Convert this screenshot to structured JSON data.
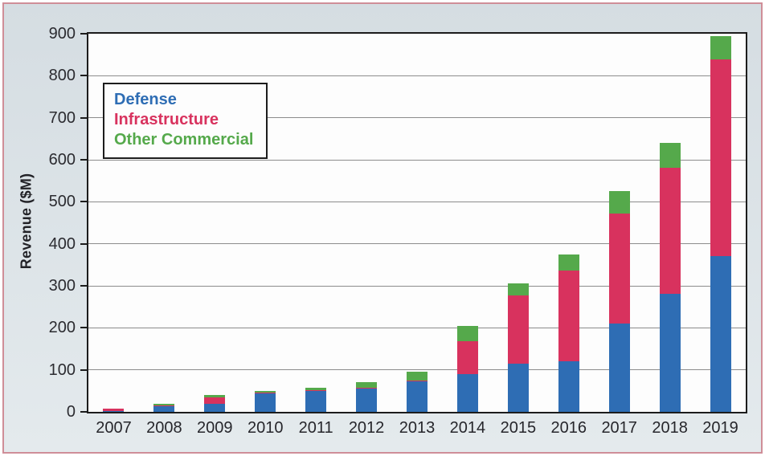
{
  "frame": {
    "background_top": "#d5dde2",
    "background_bottom": "#e4eaed",
    "outer_border_color": "#cf8e98",
    "plot_background": "#fdfdfd",
    "plot_border_color": "#1c1c1c",
    "grid_color": "#8c8c8c",
    "text_color": "#2b2b30"
  },
  "y_axis": {
    "title": "Revenue ($M)",
    "tick_labels": [
      "0",
      "100",
      "200",
      "300",
      "400",
      "500",
      "600",
      "700",
      "800",
      "900"
    ]
  },
  "legend": {
    "items": [
      {
        "label": "Defense",
        "color": "#2e6db4"
      },
      {
        "label": "Infrastructure",
        "color": "#d8325e"
      },
      {
        "label": "Other Commercial",
        "color": "#55a94b"
      }
    ]
  },
  "chart_data": {
    "type": "bar",
    "stacked": true,
    "title": "",
    "xlabel": "",
    "ylabel": "Revenue ($M)",
    "ylim": [
      0,
      900
    ],
    "ytick_step": 100,
    "grid": true,
    "legend_position": "upper-left-inside",
    "categories": [
      "2007",
      "2008",
      "2009",
      "2010",
      "2011",
      "2012",
      "2013",
      "2014",
      "2015",
      "2016",
      "2017",
      "2018",
      "2019"
    ],
    "series": [
      {
        "name": "Defense",
        "color": "#2e6db4",
        "values": [
          2,
          15,
          20,
          44,
          50,
          55,
          73,
          90,
          115,
          120,
          210,
          280,
          370
        ]
      },
      {
        "name": "Infrastructure",
        "color": "#d8325e",
        "values": [
          6,
          1,
          15,
          1,
          2,
          3,
          2,
          78,
          163,
          217,
          262,
          300,
          468
        ]
      },
      {
        "name": "Other Commercial",
        "color": "#55a94b",
        "values": [
          0,
          4,
          5,
          5,
          5,
          12,
          20,
          37,
          27,
          38,
          53,
          60,
          57
        ]
      }
    ],
    "totals": [
      8,
      20,
      40,
      50,
      57,
      70,
      95,
      205,
      305,
      375,
      525,
      640,
      895
    ]
  }
}
